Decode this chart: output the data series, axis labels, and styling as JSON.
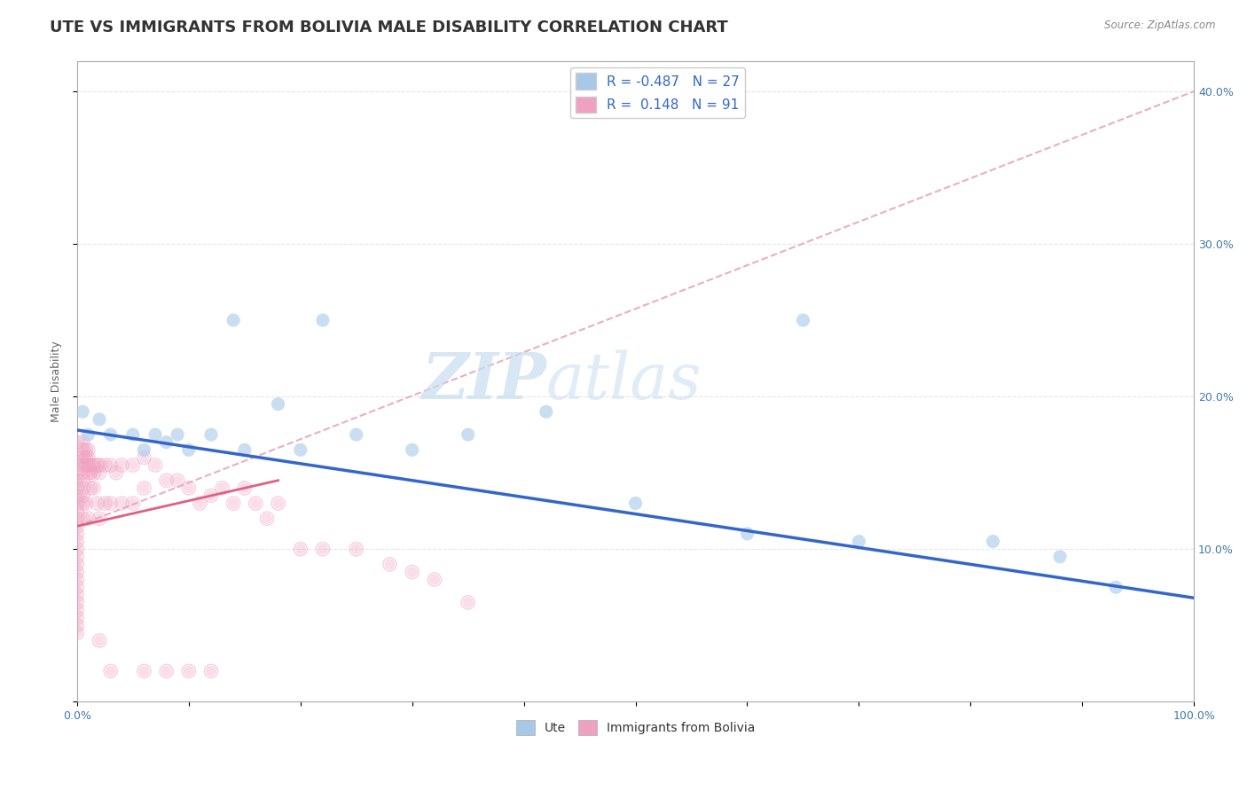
{
  "title": "UTE VS IMMIGRANTS FROM BOLIVIA MALE DISABILITY CORRELATION CHART",
  "source": "Source: ZipAtlas.com",
  "ylabel": "Male Disability",
  "watermark_zip": "ZIP",
  "watermark_atlas": "atlas",
  "ute_R": -0.487,
  "ute_N": 27,
  "bolivia_R": 0.148,
  "bolivia_N": 91,
  "ute_color": "#a8c8e8",
  "bolivia_color": "#f0a0c0",
  "ute_line_color": "#3366cc",
  "bolivia_line_color": "#e06080",
  "bolivia_dash_color": "#e8a0b8",
  "xlim": [
    0.0,
    1.0
  ],
  "ylim": [
    0.0,
    0.42
  ],
  "ute_scatter_x": [
    0.005,
    0.01,
    0.02,
    0.03,
    0.05,
    0.06,
    0.07,
    0.08,
    0.09,
    0.1,
    0.12,
    0.14,
    0.15,
    0.18,
    0.2,
    0.22,
    0.25,
    0.3,
    0.35,
    0.42,
    0.5,
    0.6,
    0.65,
    0.7,
    0.82,
    0.88,
    0.93
  ],
  "ute_scatter_y": [
    0.19,
    0.175,
    0.185,
    0.175,
    0.175,
    0.165,
    0.175,
    0.17,
    0.175,
    0.165,
    0.175,
    0.25,
    0.165,
    0.195,
    0.165,
    0.25,
    0.175,
    0.165,
    0.175,
    0.19,
    0.13,
    0.11,
    0.25,
    0.105,
    0.105,
    0.095,
    0.075
  ],
  "bolivia_dense_x": [
    0.0,
    0.0,
    0.0,
    0.0,
    0.0,
    0.0,
    0.0,
    0.0,
    0.0,
    0.0,
    0.0,
    0.0,
    0.0,
    0.0,
    0.0,
    0.0,
    0.0,
    0.0,
    0.0,
    0.0,
    0.0,
    0.0,
    0.0,
    0.0,
    0.0,
    0.005,
    0.005,
    0.005,
    0.005,
    0.005,
    0.005,
    0.005,
    0.005,
    0.005,
    0.005,
    0.008,
    0.008,
    0.008,
    0.008,
    0.01,
    0.01,
    0.01,
    0.01,
    0.01,
    0.012,
    0.012,
    0.012,
    0.015,
    0.015,
    0.015,
    0.018,
    0.018,
    0.02,
    0.02,
    0.02,
    0.025,
    0.025,
    0.03,
    0.03,
    0.035,
    0.04,
    0.04,
    0.05,
    0.05,
    0.06,
    0.06,
    0.07,
    0.08,
    0.09,
    0.1,
    0.11,
    0.12,
    0.13,
    0.14,
    0.15,
    0.16,
    0.17,
    0.18,
    0.2,
    0.22,
    0.25,
    0.28,
    0.3,
    0.32,
    0.35,
    0.02,
    0.03,
    0.06,
    0.08,
    0.1,
    0.12
  ],
  "bolivia_dense_y": [
    0.17,
    0.16,
    0.155,
    0.15,
    0.145,
    0.14,
    0.135,
    0.13,
    0.125,
    0.12,
    0.115,
    0.11,
    0.105,
    0.1,
    0.095,
    0.09,
    0.085,
    0.08,
    0.075,
    0.07,
    0.065,
    0.06,
    0.055,
    0.05,
    0.045,
    0.17,
    0.165,
    0.16,
    0.155,
    0.15,
    0.145,
    0.14,
    0.135,
    0.13,
    0.12,
    0.165,
    0.16,
    0.155,
    0.13,
    0.165,
    0.16,
    0.155,
    0.15,
    0.12,
    0.155,
    0.15,
    0.14,
    0.155,
    0.15,
    0.14,
    0.155,
    0.13,
    0.155,
    0.15,
    0.12,
    0.155,
    0.13,
    0.155,
    0.13,
    0.15,
    0.155,
    0.13,
    0.155,
    0.13,
    0.16,
    0.14,
    0.155,
    0.145,
    0.145,
    0.14,
    0.13,
    0.135,
    0.14,
    0.13,
    0.14,
    0.13,
    0.12,
    0.13,
    0.1,
    0.1,
    0.1,
    0.09,
    0.085,
    0.08,
    0.065,
    0.04,
    0.02,
    0.02,
    0.02,
    0.02,
    0.02
  ],
  "ute_trend_x": [
    0.0,
    1.0
  ],
  "ute_trend_y": [
    0.178,
    0.068
  ],
  "bolivia_trend_x": [
    0.0,
    1.0
  ],
  "bolivia_trend_y": [
    0.115,
    0.4
  ],
  "bolivia_short_trend_x": [
    0.0,
    0.18
  ],
  "bolivia_short_trend_y": [
    0.115,
    0.145
  ],
  "background_color": "#ffffff",
  "grid_color": "#e0e0e0",
  "title_fontsize": 13,
  "axis_label_fontsize": 9,
  "tick_fontsize": 9,
  "legend_fontsize": 11
}
